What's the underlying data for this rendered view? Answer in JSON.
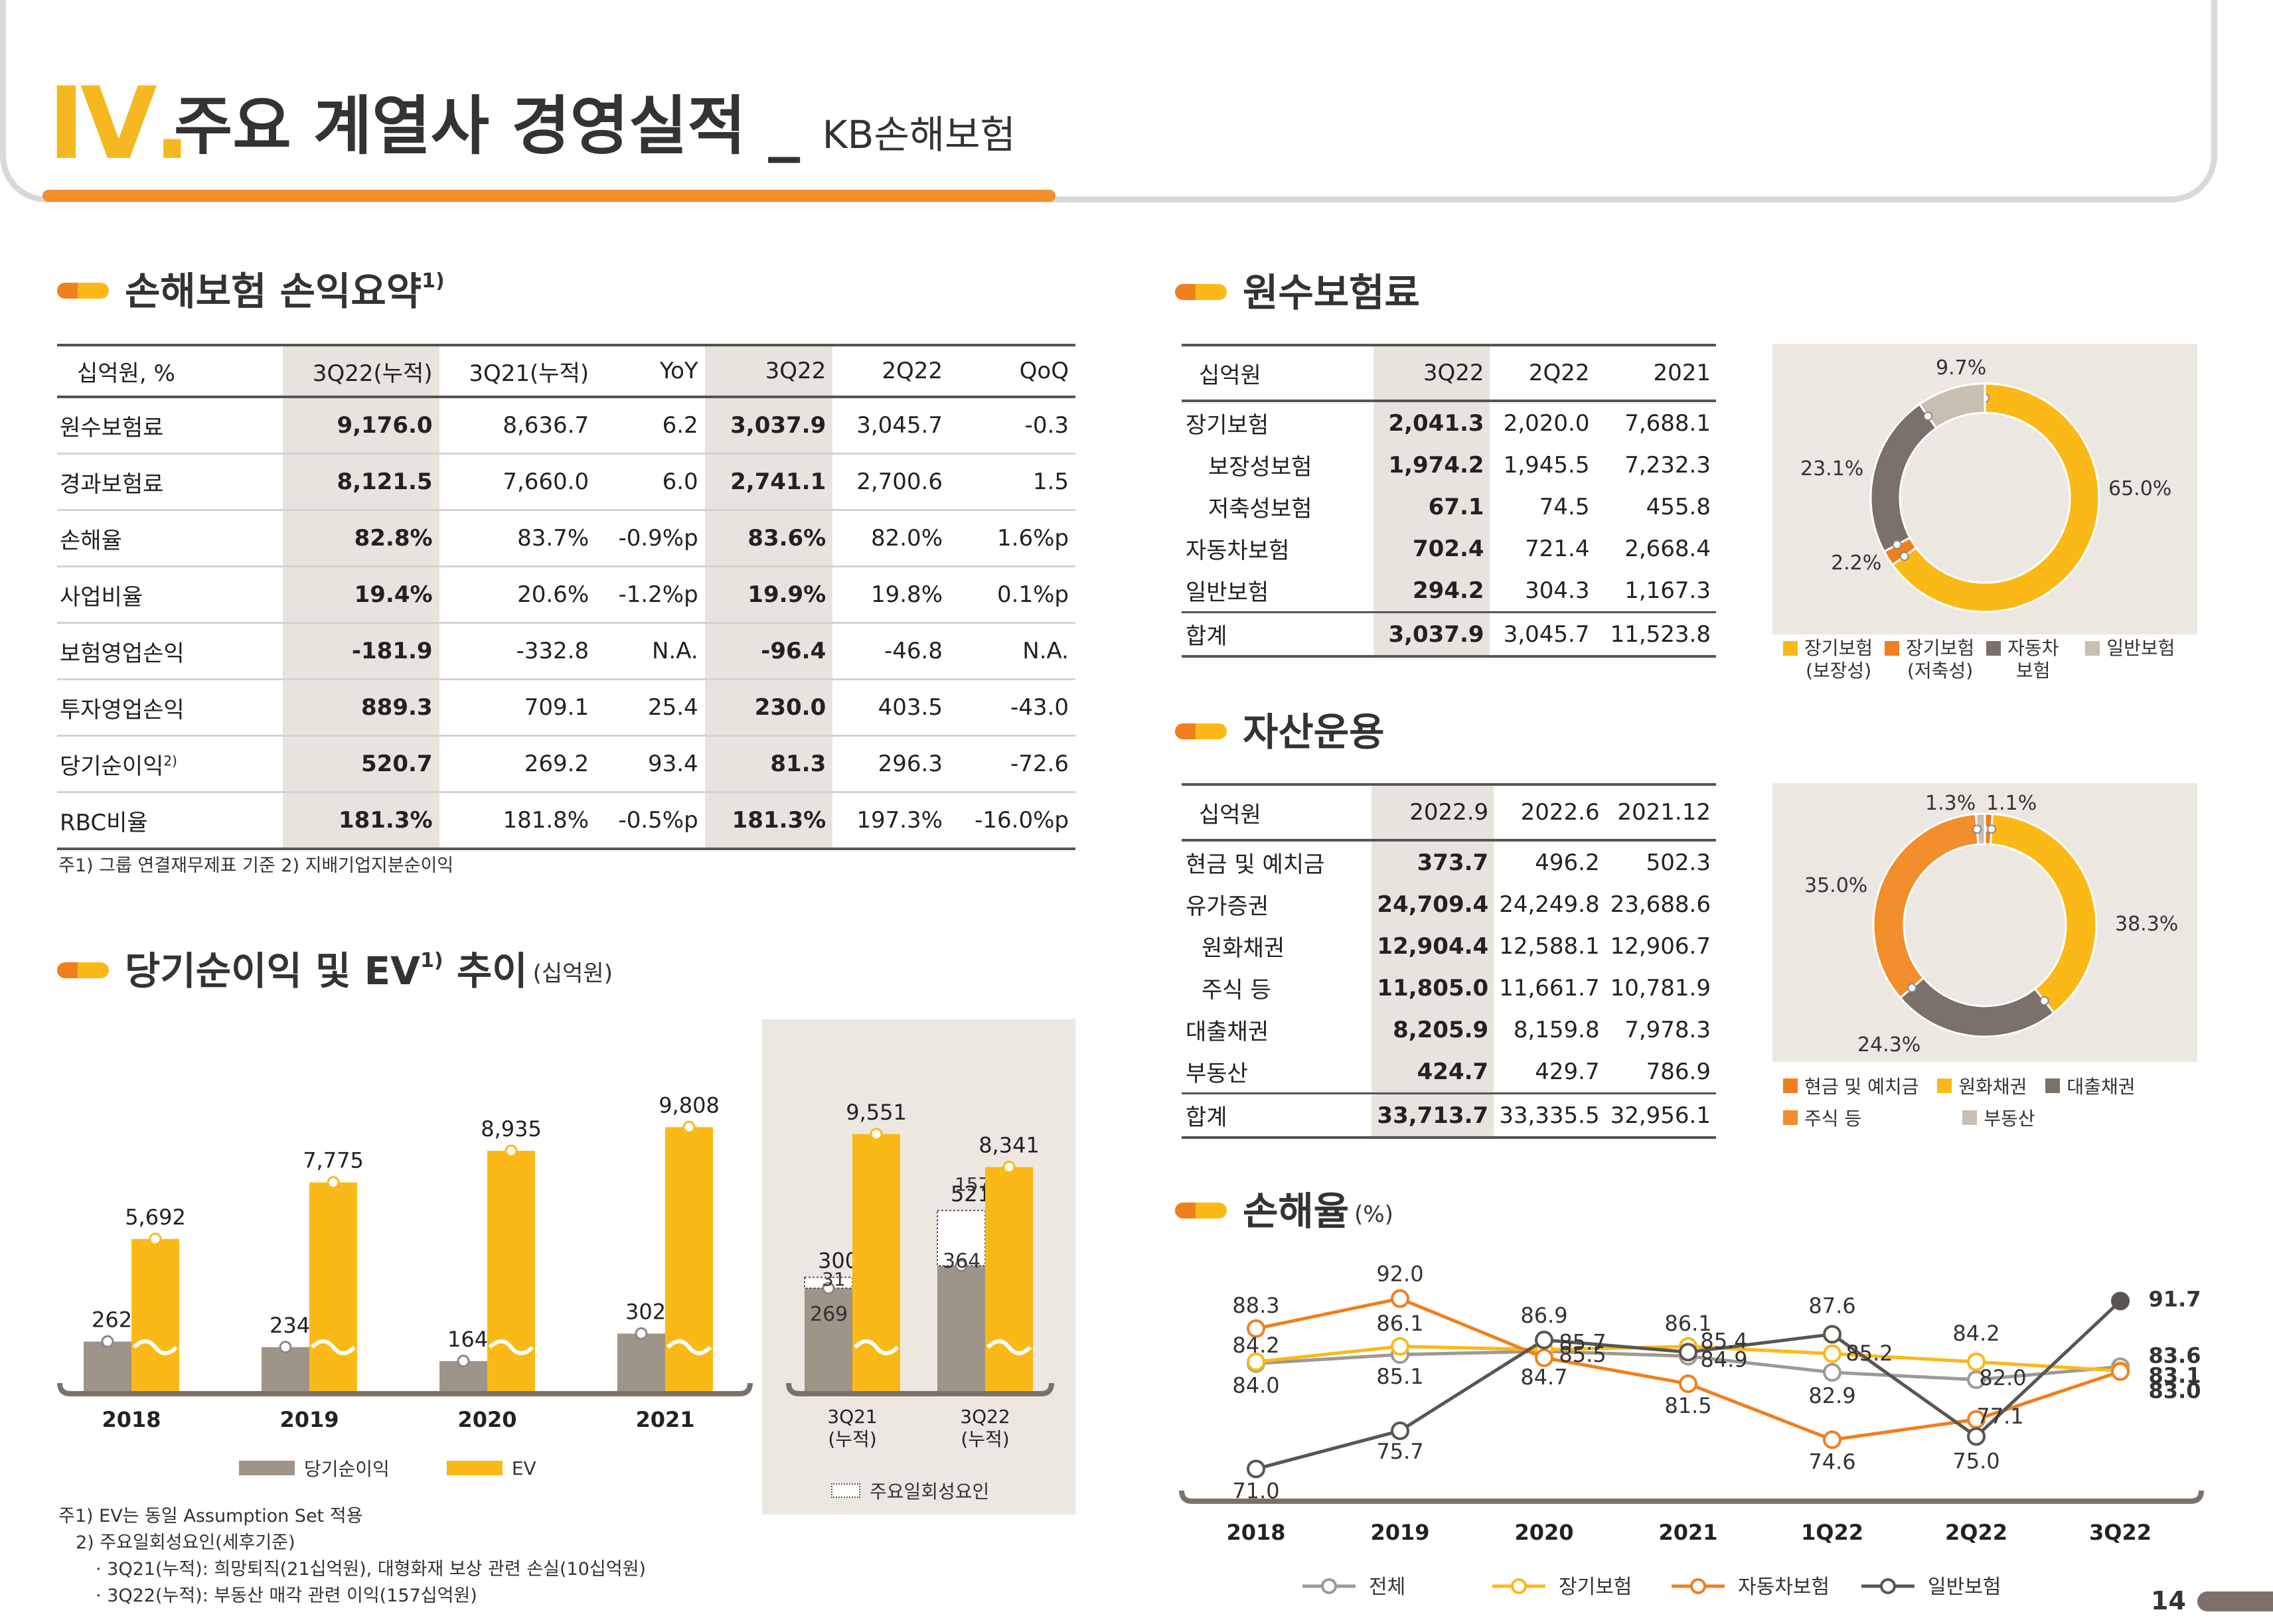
{
  "header": {
    "num": "Ⅳ.",
    "title": "주요 계열사 경영실적 _ ",
    "subtitle": "KB손해보험"
  },
  "sec1": {
    "title": "손해보험 손익요약",
    "sup": "1)"
  },
  "sec2": {
    "title": "원수보험료"
  },
  "sec3": {
    "title": "자산운용"
  },
  "sec4": {
    "title": "당기순이익 및 EV",
    "sup": "1)",
    "title2": "추이",
    "unit": "(십억원)"
  },
  "sec5": {
    "title": "손해율",
    "unit": "(%)"
  },
  "table1": {
    "headers": [
      "십억원, %",
      "3Q22(누적)",
      "3Q21(누적)",
      "YoY",
      "3Q22",
      "2Q22",
      "QoQ"
    ],
    "rows": [
      [
        "원수보험료",
        "9,176.0",
        "8,636.7",
        "6.2",
        "3,037.9",
        "3,045.7",
        "-0.3"
      ],
      [
        "경과보험료",
        "8,121.5",
        "7,660.0",
        "6.0",
        "2,741.1",
        "2,700.6",
        "1.5"
      ],
      [
        "손해율",
        "82.8%",
        "83.7%",
        "-0.9%p",
        "83.6%",
        "82.0%",
        "1.6%p"
      ],
      [
        "사업비율",
        "19.4%",
        "20.6%",
        "-1.2%p",
        "19.9%",
        "19.8%",
        "0.1%p"
      ],
      [
        "보험영업손익",
        "-181.9",
        "-332.8",
        "N.A.",
        "-96.4",
        "-46.8",
        "N.A."
      ],
      [
        "투자영업손익",
        "889.3",
        "709.1",
        "25.4",
        "230.0",
        "403.5",
        "-43.0"
      ],
      [
        "당기순이익",
        "520.7",
        "269.2",
        "93.4",
        "81.3",
        "296.3",
        "-72.6"
      ],
      [
        "RBC비율",
        "181.3%",
        "181.8%",
        "-0.5%p",
        "181.3%",
        "197.3%",
        "-16.0%p"
      ]
    ],
    "row7_sup": "2)",
    "note": "주1) 그룹 연결재무제표 기준   2) 지배기업지분순이익"
  },
  "table2": {
    "headers": [
      "십억원",
      "3Q22",
      "2Q22",
      "2021"
    ],
    "rows": [
      [
        "장기보험",
        "2,041.3",
        "2,020.0",
        "7,688.1"
      ],
      [
        "보장성보험",
        "1,974.2",
        "1,945.5",
        "7,232.3"
      ],
      [
        "저축성보험",
        "67.1",
        "74.5",
        "455.8"
      ],
      [
        "자동차보험",
        "702.4",
        "721.4",
        "2,668.4"
      ],
      [
        "일반보험",
        "294.2",
        "304.3",
        "1,167.3"
      ],
      [
        "합계",
        "3,037.9",
        "3,045.7",
        "11,523.8"
      ]
    ]
  },
  "table3": {
    "headers": [
      "십억원",
      "2022.9",
      "2022.6",
      "2021.12"
    ],
    "rows": [
      [
        "현금 및 예치금",
        "373.7",
        "496.2",
        "502.3"
      ],
      [
        "유가증권",
        "24,709.4",
        "24,249.8",
        "23,688.6"
      ],
      [
        "원화채권",
        "12,904.4",
        "12,588.1",
        "12,906.7"
      ],
      [
        "주식 등",
        "11,805.0",
        "11,661.7",
        "10,781.9"
      ],
      [
        "대출채권",
        "8,205.9",
        "8,159.8",
        "7,978.3"
      ],
      [
        "부동산",
        "424.7",
        "429.7",
        "786.9"
      ],
      [
        "합계",
        "33,713.7",
        "33,335.5",
        "32,956.1"
      ]
    ]
  },
  "chart_data": [
    {
      "type": "pie",
      "title": "",
      "labels": [
        "장기보험 (보장성)",
        "장기보험 (저축성)",
        "자동차 보험",
        "일반보험"
      ],
      "values": [
        65.0,
        2.2,
        23.1,
        9.7
      ],
      "value_labels": [
        "65.0%",
        "2.2%",
        "23.1%",
        "9.7%"
      ],
      "colors": [
        "#fbb917",
        "#f07f1d",
        "#7b716a",
        "#c9beb2"
      ],
      "legend": [
        "장기보험",
        "(보장성)",
        "장기보험",
        "(저축성)",
        "자동차",
        "보험",
        "일반보험"
      ]
    },
    {
      "type": "pie",
      "title": "",
      "labels": [
        "현금 및 예치금",
        "원화채권",
        "대출채권",
        "주식 등",
        "부동산"
      ],
      "values": [
        1.1,
        38.3,
        24.3,
        35.0,
        1.3
      ],
      "value_labels": [
        "1.1%",
        "38.3%",
        "24.3%",
        "35.0%",
        "1.3%"
      ],
      "colors": [
        "#f07f1d",
        "#fbb917",
        "#7b716a",
        "#f28e2b",
        "#c9beb2"
      ]
    },
    {
      "type": "bar",
      "title": "",
      "categories": [
        "2018",
        "2019",
        "2020",
        "2021"
      ],
      "series": [
        {
          "name": "당기순이익",
          "values": [
            262,
            234,
            164,
            302
          ]
        },
        {
          "name": "EV",
          "values": [
            5692,
            7775,
            8935,
            9808
          ]
        }
      ],
      "value_labels": {
        "net": [
          "262",
          "234",
          "164",
          "302"
        ],
        "ev": [
          "5,692",
          "7,775",
          "8,935",
          "9,808"
        ]
      },
      "legend": [
        "당기순이익",
        "EV"
      ]
    },
    {
      "type": "bar",
      "title": "",
      "categories": [
        "3Q21 (누적)",
        "3Q22 (누적)"
      ],
      "series": [
        {
          "name": "당기순이익",
          "values": [
            300,
            521
          ]
        },
        {
          "name": "EV",
          "values": [
            9551,
            8341
          ]
        },
        {
          "name": "주요일회성요인",
          "values": [
            31,
            157
          ]
        }
      ],
      "inner_labels": [
        "269",
        "364"
      ],
      "value_labels": {
        "net": [
          "300",
          "521"
        ],
        "ev": [
          "9,551",
          "8,341"
        ],
        "onetime": [
          "31",
          "157"
        ]
      },
      "cat_lines": [
        [
          "3Q21",
          "(누적)"
        ],
        [
          "3Q22",
          "(누적)"
        ]
      ],
      "legend": [
        "주요일회성요인"
      ]
    },
    {
      "type": "line",
      "title": "",
      "x": [
        "2018",
        "2019",
        "2020",
        "2021",
        "1Q22",
        "2Q22",
        "3Q22"
      ],
      "series": [
        {
          "name": "전체",
          "values": [
            84.0,
            85.1,
            85.5,
            84.9,
            82.9,
            82.0,
            83.6
          ],
          "color": "#9e9993"
        },
        {
          "name": "장기보험",
          "values": [
            84.2,
            86.1,
            85.7,
            86.1,
            85.2,
            84.2,
            83.1
          ],
          "color": "#fbb917"
        },
        {
          "name": "자동차보험",
          "values": [
            88.3,
            92.0,
            84.7,
            81.5,
            74.6,
            77.1,
            83.0
          ],
          "color": "#f07f1d"
        },
        {
          "name": "일반보험",
          "values": [
            71.0,
            75.7,
            86.9,
            85.4,
            87.6,
            75.0,
            91.7
          ],
          "color": "#5b5550"
        }
      ],
      "ylim": [
        68,
        95
      ],
      "labels": {
        "total": [
          "84.0",
          "85.1",
          "85.5",
          "84.9",
          "82.9",
          "82.0",
          "83.6"
        ],
        "long": [
          "84.2",
          "86.1",
          "85.7",
          "86.1",
          "85.2",
          "84.2",
          "83.1"
        ],
        "auto": [
          "88.3",
          "92.0",
          "84.7",
          "81.5",
          "74.6",
          "77.1",
          "83.0"
        ],
        "general": [
          "71.0",
          "75.7",
          "86.9",
          "85.4",
          "87.6",
          "75.0",
          "91.7"
        ]
      }
    }
  ],
  "notes": {
    "ev1": "주1) EV는 동일 Assumption Set 적용",
    "ev2": "2) 주요일회성요인(세후기준)",
    "ev3": "· 3Q21(누적): 희망퇴직(21십억원), 대형화재 보상 관련 손실(10십억원)",
    "ev4": "· 3Q22(누적): 부동산 매각 관련 이익(157십억원)"
  },
  "page": "14"
}
